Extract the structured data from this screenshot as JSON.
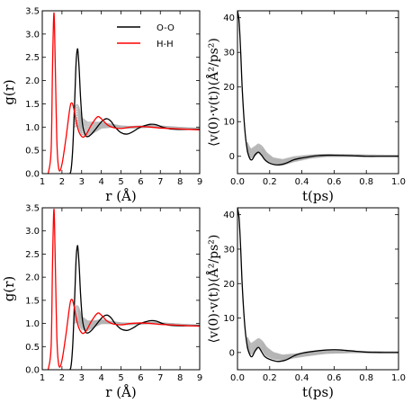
{
  "colors": {
    "oo": "#000000",
    "hh": "#ff0000",
    "bands": "#b3b3b3"
  },
  "chart_data": [
    {
      "type": "line",
      "panel": "top-left",
      "xlabel": "r (Å)",
      "ylabel": "g(r)",
      "xlim": [
        1,
        9
      ],
      "ylim": [
        0,
        3.5
      ],
      "xticks": [
        "1",
        "2",
        "3",
        "4",
        "5",
        "6",
        "7",
        "8",
        "9"
      ],
      "yticks": [
        "0.0",
        "0.5",
        "1.0",
        "1.5",
        "2.0",
        "2.5",
        "3.0",
        "3.5"
      ],
      "legend": {
        "position": "top-right",
        "entries": [
          "O-O",
          "H-H"
        ]
      },
      "series": [
        {
          "name": "O-O",
          "color": "#000000",
          "x": [
            2.3,
            2.45,
            2.55,
            2.65,
            2.72,
            2.78,
            2.82,
            2.88,
            2.95,
            3.05,
            3.2,
            3.35,
            3.5,
            3.7,
            3.9,
            4.1,
            4.3,
            4.5,
            4.7,
            5.0,
            5.3,
            5.6,
            5.9,
            6.2,
            6.5,
            6.8,
            7.1,
            7.5,
            8.0,
            8.5,
            9.0
          ],
          "y": [
            0.0,
            0.05,
            0.55,
            1.6,
            2.4,
            2.67,
            2.6,
            2.2,
            1.6,
            1.05,
            0.82,
            0.8,
            0.85,
            0.95,
            1.06,
            1.15,
            1.18,
            1.12,
            1.0,
            0.88,
            0.85,
            0.9,
            0.98,
            1.03,
            1.06,
            1.05,
            1.0,
            0.96,
            0.95,
            0.95,
            0.95
          ]
        },
        {
          "name": "H-H",
          "color": "#ff0000",
          "x": [
            1.3,
            1.45,
            1.52,
            1.58,
            1.62,
            1.68,
            1.75,
            1.85,
            2.0,
            2.2,
            2.4,
            2.5,
            2.6,
            2.8,
            3.0,
            3.2,
            3.5,
            3.8,
            4.0,
            4.3,
            4.6,
            5.0,
            5.5,
            6.0,
            6.5,
            7.0,
            7.5,
            8.0,
            9.0
          ],
          "y": [
            0.0,
            0.5,
            2.3,
            3.38,
            3.2,
            1.9,
            0.6,
            0.08,
            0.2,
            0.75,
            1.4,
            1.52,
            1.4,
            0.98,
            0.8,
            0.82,
            1.05,
            1.22,
            1.18,
            1.05,
            0.99,
            0.97,
            1.0,
            1.01,
            1.0,
            0.98,
            0.97,
            0.96,
            0.94
          ]
        }
      ],
      "bands": {
        "color": "#b3b3b3",
        "x": [
          2.6,
          2.8,
          3.0,
          3.3,
          3.6,
          4.0,
          4.5,
          5.0,
          5.5,
          6.0,
          6.5,
          7.0,
          8.0,
          9.0
        ],
        "ylow": [
          1.0,
          1.05,
          0.85,
          0.8,
          0.88,
          0.98,
          1.0,
          0.98,
          0.98,
          0.99,
          1.0,
          1.0,
          0.97,
          0.95
        ],
        "yhigh": [
          1.4,
          1.5,
          1.2,
          1.1,
          1.1,
          1.1,
          1.06,
          1.02,
          1.01,
          1.02,
          1.03,
          1.02,
          0.99,
          0.97
        ]
      }
    },
    {
      "type": "line",
      "panel": "top-right",
      "xlabel": "t(ps)",
      "ylabel": "⟨v(0)·v(t)⟩(Å²/ps²)",
      "xlim": [
        0,
        1
      ],
      "ylim": [
        -5,
        42
      ],
      "xticks": [
        "0.0",
        "0.2",
        "0.4",
        "0.6",
        "0.8",
        "1.0"
      ],
      "yticks": [
        "0",
        "10",
        "20",
        "30",
        "40"
      ],
      "series": [
        {
          "name": "",
          "color": "#000000",
          "x": [
            0.0,
            0.01,
            0.02,
            0.03,
            0.045,
            0.06,
            0.075,
            0.09,
            0.11,
            0.13,
            0.15,
            0.17,
            0.2,
            0.25,
            0.3,
            0.35,
            0.4,
            0.5,
            0.6,
            0.7,
            0.8,
            0.9,
            1.0
          ],
          "y": [
            42,
            39,
            30,
            19,
            8,
            2,
            -0.5,
            -1.0,
            0.5,
            1.2,
            0.3,
            -1.0,
            -2.0,
            -2.5,
            -2.0,
            -1.0,
            -0.5,
            0.2,
            0.3,
            0.2,
            0.0,
            0.0,
            0.0
          ]
        }
      ],
      "bands": {
        "color": "#b3b3b3",
        "x": [
          0.06,
          0.08,
          0.1,
          0.13,
          0.15,
          0.18,
          0.22,
          0.28,
          0.35,
          0.45,
          0.55,
          0.7,
          0.85,
          1.0
        ],
        "ylow": [
          1.5,
          -0.5,
          0.0,
          1.0,
          0.3,
          -1.5,
          -2.0,
          -2.5,
          -1.5,
          -0.5,
          0.0,
          0.0,
          0.0,
          0.0
        ],
        "yhigh": [
          4.0,
          2.0,
          2.5,
          3.5,
          3.0,
          1.0,
          -0.5,
          -1.0,
          -0.2,
          0.3,
          0.5,
          0.4,
          0.3,
          0.2
        ]
      }
    },
    {
      "type": "line",
      "panel": "bottom-left",
      "xlabel": "r (Å)",
      "ylabel": "g(r)",
      "xlim": [
        1,
        9
      ],
      "ylim": [
        0,
        3.5
      ],
      "xticks": [
        "1",
        "2",
        "3",
        "4",
        "5",
        "6",
        "7",
        "8",
        "9"
      ],
      "yticks": [
        "0.0",
        "0.5",
        "1.0",
        "1.5",
        "2.0",
        "2.5",
        "3.0",
        "3.5"
      ],
      "series": [
        {
          "name": "O-O",
          "color": "#000000",
          "x": [
            2.3,
            2.45,
            2.55,
            2.65,
            2.72,
            2.78,
            2.82,
            2.88,
            2.95,
            3.05,
            3.2,
            3.35,
            3.5,
            3.7,
            3.9,
            4.1,
            4.3,
            4.5,
            4.7,
            5.0,
            5.3,
            5.6,
            5.9,
            6.2,
            6.5,
            6.8,
            7.1,
            7.5,
            8.0,
            8.5,
            9.0
          ],
          "y": [
            0.0,
            0.05,
            0.55,
            1.6,
            2.4,
            2.67,
            2.6,
            2.2,
            1.6,
            1.05,
            0.82,
            0.8,
            0.85,
            0.95,
            1.06,
            1.15,
            1.18,
            1.12,
            1.0,
            0.88,
            0.85,
            0.9,
            0.98,
            1.03,
            1.06,
            1.05,
            1.0,
            0.96,
            0.95,
            0.95,
            0.95
          ]
        },
        {
          "name": "H-H",
          "color": "#ff0000",
          "x": [
            1.3,
            1.45,
            1.52,
            1.58,
            1.62,
            1.68,
            1.75,
            1.85,
            2.0,
            2.2,
            2.4,
            2.5,
            2.6,
            2.8,
            3.0,
            3.2,
            3.5,
            3.8,
            4.0,
            4.3,
            4.6,
            5.0,
            5.5,
            6.0,
            6.5,
            7.0,
            7.5,
            8.0,
            9.0
          ],
          "y": [
            0.0,
            0.5,
            2.3,
            3.4,
            3.2,
            1.9,
            0.6,
            0.08,
            0.2,
            0.75,
            1.4,
            1.52,
            1.4,
            0.98,
            0.8,
            0.82,
            1.05,
            1.22,
            1.18,
            1.05,
            0.99,
            0.97,
            1.0,
            1.01,
            1.0,
            0.98,
            0.97,
            0.96,
            0.94
          ]
        }
      ],
      "bands": {
        "color": "#b3b3b3",
        "x": [
          2.6,
          2.8,
          3.0,
          3.3,
          3.6,
          4.0,
          4.5,
          5.0,
          5.5,
          6.0,
          6.5,
          7.0,
          8.0,
          9.0
        ],
        "ylow": [
          1.0,
          1.05,
          0.88,
          0.85,
          0.92,
          1.0,
          1.0,
          0.98,
          0.98,
          0.99,
          1.0,
          1.0,
          0.97,
          0.95
        ],
        "yhigh": [
          1.3,
          1.4,
          1.15,
          1.05,
          1.05,
          1.08,
          1.04,
          1.01,
          1.0,
          1.01,
          1.02,
          1.01,
          0.98,
          0.96
        ]
      }
    },
    {
      "type": "line",
      "panel": "bottom-right",
      "xlabel": "t(ps)",
      "ylabel": "⟨v(0)·v(t)⟩(Å²/ps²)",
      "xlim": [
        0,
        1
      ],
      "ylim": [
        -5,
        42
      ],
      "xticks": [
        "0.0",
        "0.2",
        "0.4",
        "0.6",
        "0.8",
        "1.0"
      ],
      "yticks": [
        "0",
        "10",
        "20",
        "30",
        "40"
      ],
      "series": [
        {
          "name": "",
          "color": "#000000",
          "x": [
            0.0,
            0.01,
            0.02,
            0.03,
            0.045,
            0.06,
            0.075,
            0.09,
            0.11,
            0.13,
            0.15,
            0.17,
            0.2,
            0.25,
            0.3,
            0.35,
            0.4,
            0.5,
            0.6,
            0.7,
            0.8,
            0.9,
            1.0
          ],
          "y": [
            42,
            39,
            30,
            19,
            8,
            2,
            -0.5,
            -1.2,
            0.5,
            1.5,
            0.2,
            -1.2,
            -2.0,
            -2.6,
            -2.2,
            -1.0,
            -0.2,
            0.5,
            0.8,
            0.5,
            0.1,
            0.0,
            0.0
          ]
        }
      ],
      "bands": {
        "color": "#b3b3b3",
        "x": [
          0.06,
          0.08,
          0.1,
          0.13,
          0.15,
          0.18,
          0.22,
          0.28,
          0.35,
          0.45,
          0.55,
          0.7,
          0.85,
          1.0
        ],
        "ylow": [
          1.5,
          -0.5,
          0.0,
          1.5,
          1.0,
          -1.0,
          -1.8,
          -2.2,
          -1.5,
          -0.8,
          -0.2,
          0.0,
          0.0,
          0.0
        ],
        "yhigh": [
          4.5,
          2.5,
          3.0,
          4.0,
          3.5,
          1.5,
          0.0,
          -0.8,
          -0.5,
          0.0,
          0.3,
          0.3,
          0.2,
          0.1
        ]
      }
    }
  ]
}
